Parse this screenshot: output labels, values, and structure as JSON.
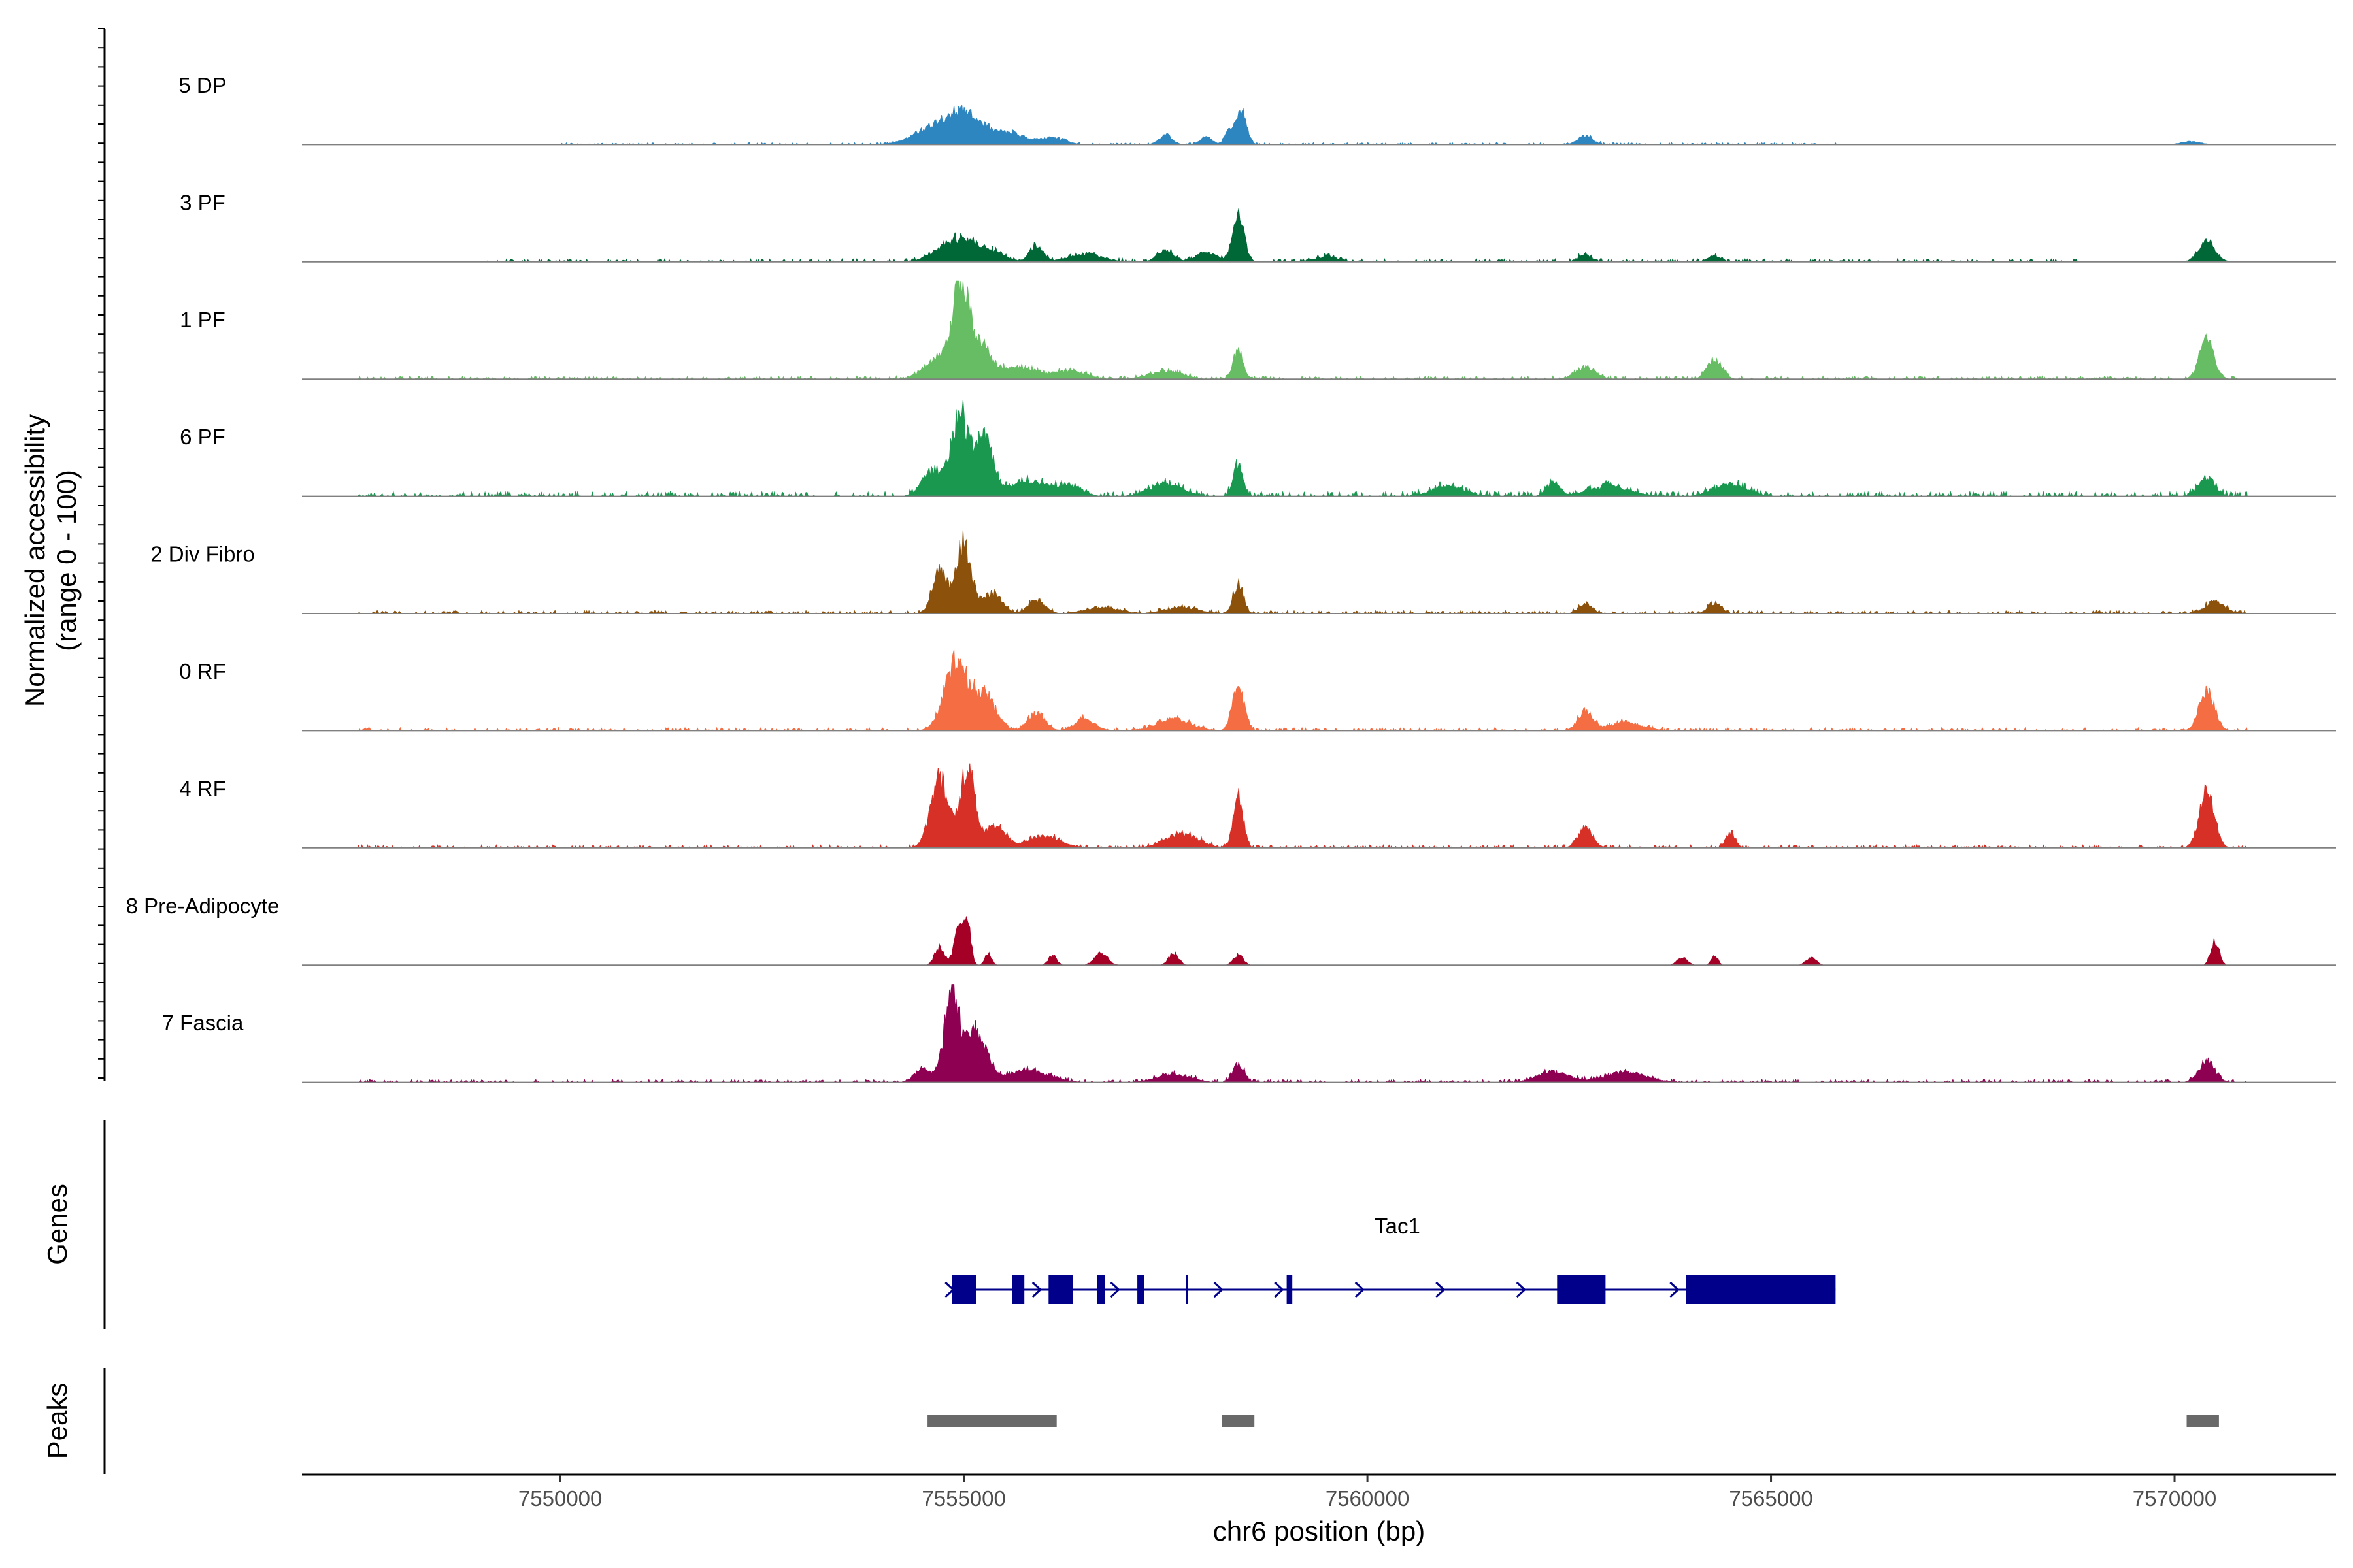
{
  "chart_data": {
    "type": "area",
    "title": "",
    "xlabel": "chr6 position (bp)",
    "ylabel": [
      "Normalized accessibility",
      "(range 0 - 100)"
    ],
    "ylim": [
      0,
      100
    ],
    "xlim": [
      7546800,
      7572000
    ],
    "x_ticks": [
      7550000,
      7555000,
      7560000,
      7565000,
      7570000
    ],
    "x_tick_labels": [
      "7550000",
      "7555000",
      "7560000",
      "7565000",
      "7570000"
    ],
    "signal_range": [
      7547500,
      7570900
    ],
    "tracks": [
      {
        "name": "5 DP",
        "color": "#2E86C1",
        "peaks": [
          [
            7555000,
            30,
            250
          ],
          [
            7554600,
            12,
            250
          ],
          [
            7555600,
            10,
            180
          ],
          [
            7556100,
            7,
            150
          ],
          [
            7557500,
            10,
            80
          ],
          [
            7558000,
            8,
            70
          ],
          [
            7558300,
            15,
            60
          ],
          [
            7558450,
            34,
            60
          ],
          [
            7562700,
            9,
            90
          ],
          [
            7570200,
            3,
            120
          ]
        ],
        "noise": [
          7552000,
          7565000,
          2
        ]
      },
      {
        "name": "3 PF",
        "color": "#006837",
        "peaks": [
          [
            7554900,
            22,
            220
          ],
          [
            7555300,
            10,
            180
          ],
          [
            7555900,
            16,
            80
          ],
          [
            7556500,
            8,
            200
          ],
          [
            7557500,
            12,
            100
          ],
          [
            7558000,
            10,
            120
          ],
          [
            7558400,
            46,
            70
          ],
          [
            7559500,
            5,
            150
          ],
          [
            7562700,
            7,
            80
          ],
          [
            7564300,
            6,
            80
          ],
          [
            7570400,
            22,
            100
          ]
        ],
        "noise": [
          7551000,
          7568000,
          3
        ]
      },
      {
        "name": "1 PF",
        "color": "#66BD63",
        "peaks": [
          [
            7554950,
            78,
            90
          ],
          [
            7555150,
            40,
            160
          ],
          [
            7554700,
            20,
            180
          ],
          [
            7555700,
            12,
            200
          ],
          [
            7556300,
            8,
            200
          ],
          [
            7557500,
            8,
            200
          ],
          [
            7558400,
            28,
            60
          ],
          [
            7562700,
            12,
            120
          ],
          [
            7564300,
            20,
            90
          ],
          [
            7570400,
            38,
            90
          ]
        ],
        "noise": [
          7549000,
          7570000,
          3
        ]
      },
      {
        "name": "6 PF",
        "color": "#1A9850",
        "peaks": [
          [
            7554950,
            80,
            110
          ],
          [
            7555250,
            60,
            110
          ],
          [
            7554600,
            25,
            120
          ],
          [
            7555800,
            15,
            220
          ],
          [
            7556300,
            10,
            150
          ],
          [
            7557500,
            12,
            200
          ],
          [
            7558400,
            32,
            60
          ],
          [
            7561000,
            10,
            200
          ],
          [
            7562300,
            14,
            80
          ],
          [
            7563000,
            10,
            250
          ],
          [
            7564500,
            12,
            200
          ],
          [
            7570400,
            18,
            100
          ]
        ],
        "noise": [
          7548000,
          7570900,
          5
        ]
      },
      {
        "name": "2 Div Fibro",
        "color": "#8C510A",
        "peaks": [
          [
            7555000,
            72,
            90
          ],
          [
            7554700,
            42,
            90
          ],
          [
            7555350,
            20,
            120
          ],
          [
            7555900,
            14,
            100
          ],
          [
            7556700,
            6,
            200
          ],
          [
            7557700,
            6,
            200
          ],
          [
            7558400,
            30,
            60
          ],
          [
            7562700,
            10,
            80
          ],
          [
            7564300,
            10,
            80
          ],
          [
            7570500,
            12,
            120
          ]
        ],
        "noise": [
          7549000,
          7570900,
          3
        ]
      },
      {
        "name": "0 RF",
        "color": "#F46D43",
        "peaks": [
          [
            7554900,
            70,
            140
          ],
          [
            7555250,
            35,
            140
          ],
          [
            7555900,
            18,
            100
          ],
          [
            7556500,
            12,
            120
          ],
          [
            7557600,
            12,
            200
          ],
          [
            7558400,
            46,
            70
          ],
          [
            7562700,
            20,
            90
          ],
          [
            7563200,
            8,
            200
          ],
          [
            7570400,
            42,
            90
          ]
        ],
        "noise": [
          7548500,
          7570900,
          3
        ]
      },
      {
        "name": "4 RF",
        "color": "#D73027",
        "peaks": [
          [
            7554700,
            70,
            110
          ],
          [
            7555050,
            82,
            90
          ],
          [
            7555400,
            22,
            120
          ],
          [
            7556000,
            12,
            200
          ],
          [
            7557700,
            14,
            200
          ],
          [
            7558400,
            54,
            60
          ],
          [
            7562700,
            20,
            90
          ],
          [
            7564500,
            14,
            60
          ],
          [
            7570400,
            58,
            90
          ]
        ],
        "noise": [
          7549000,
          7570900,
          3
        ]
      },
      {
        "name": "8 Pre-Adipocyte",
        "color": "#A50026",
        "peaks": [
          [
            7554950,
            42,
            60
          ],
          [
            7555050,
            38,
            40
          ],
          [
            7554700,
            18,
            60
          ],
          [
            7555300,
            12,
            40
          ],
          [
            7556100,
            10,
            50
          ],
          [
            7556700,
            12,
            80
          ],
          [
            7557600,
            12,
            60
          ],
          [
            7558400,
            10,
            60
          ],
          [
            7563900,
            8,
            60
          ],
          [
            7564300,
            10,
            40
          ],
          [
            7565500,
            8,
            60
          ],
          [
            7570500,
            26,
            50
          ]
        ],
        "noise": [
          7554400,
          7570800,
          0
        ]
      },
      {
        "name": "7 Fascia",
        "color": "#8E0152",
        "peaks": [
          [
            7554850,
            90,
            90
          ],
          [
            7555150,
            50,
            130
          ],
          [
            7554500,
            14,
            100
          ],
          [
            7555800,
            12,
            250
          ],
          [
            7557600,
            8,
            200
          ],
          [
            7558400,
            18,
            70
          ],
          [
            7562300,
            10,
            200
          ],
          [
            7563200,
            10,
            250
          ],
          [
            7570400,
            20,
            100
          ]
        ],
        "noise": [
          7548000,
          7570900,
          3
        ]
      }
    ],
    "genes": {
      "panel_title": "Genes",
      "name": "Tac1",
      "color": "#00008B",
      "start": 7554850,
      "end": 7565800,
      "exons": [
        [
          7554850,
          7555150
        ],
        [
          7555600,
          7555750
        ],
        [
          7556050,
          7556350
        ],
        [
          7556650,
          7556750
        ],
        [
          7557150,
          7557230
        ],
        [
          7557750,
          7557770
        ],
        [
          7559000,
          7559070
        ],
        [
          7562350,
          7562950
        ],
        [
          7563950,
          7565800
        ]
      ],
      "arrows": [
        7554820,
        7555900,
        7556870,
        7558150,
        7558900,
        7559900,
        7560900,
        7561900,
        7563800
      ]
    },
    "peaks_panel": {
      "panel_title": "Peaks",
      "color": "#696969",
      "regions": [
        [
          7554550,
          7556150
        ],
        [
          7558200,
          7558600
        ],
        [
          7570150,
          7570550
        ]
      ]
    }
  }
}
